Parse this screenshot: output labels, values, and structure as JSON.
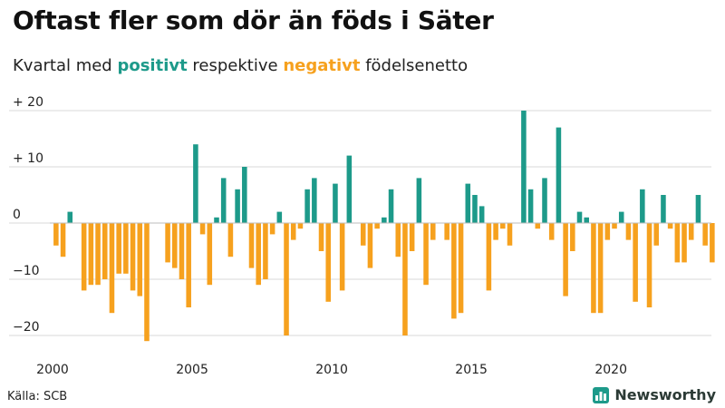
{
  "header": {
    "title": "Oftast fler som dör än föds i Säter",
    "subtitle_pre": "Kvartal med ",
    "subtitle_pos": "positivt",
    "subtitle_mid": " respektive ",
    "subtitle_neg": "negativt",
    "subtitle_post": " födelsenetto"
  },
  "footer": {
    "source": "Källa: SCB",
    "brand": "Newsworthy"
  },
  "colors": {
    "positive": "#1d9a8a",
    "negative": "#f6a11e",
    "grid": "#d9d9d9",
    "axis_text": "#222222"
  },
  "chart_data": {
    "type": "bar",
    "title": "Oftast fler som dör än föds i Säter",
    "subtitle": "Kvartal med positivt respektive negativt födelsenetto",
    "xlabel": "",
    "ylabel": "",
    "start_year": 2000,
    "periods_per_year": 4,
    "xlim": [
      2000,
      2023.5
    ],
    "ylim": [
      -23,
      22
    ],
    "yticks": [
      20,
      10,
      0,
      -10,
      -20
    ],
    "ytick_labels": [
      "+ 20",
      "+ 10",
      "0",
      "−10",
      "−20"
    ],
    "xticks": [
      2000,
      2005,
      2010,
      2015,
      2020
    ],
    "xtick_labels": [
      "2000",
      "2005",
      "2010",
      "2015",
      "2020"
    ],
    "grid": true,
    "values": [
      -4,
      -6,
      2,
      0,
      -12,
      -11,
      -11,
      -10,
      -16,
      -9,
      -9,
      -12,
      -13,
      -21,
      0,
      0,
      -7,
      -8,
      -10,
      -15,
      14,
      -2,
      -11,
      1,
      8,
      -6,
      6,
      10,
      -8,
      -11,
      -10,
      -2,
      2,
      -20,
      -3,
      -1,
      6,
      8,
      -5,
      -14,
      7,
      -12,
      12,
      0,
      -4,
      -8,
      -1,
      1,
      6,
      -6,
      -20,
      -5,
      8,
      -11,
      -3,
      0,
      -3,
      -17,
      -16,
      7,
      5,
      3,
      -12,
      -3,
      -1,
      -4,
      0,
      20,
      6,
      -1,
      8,
      -3,
      17,
      -13,
      -5,
      2,
      1,
      -16,
      -16,
      -3,
      -1,
      2,
      -3,
      -14,
      6,
      -15,
      -4,
      5,
      -1,
      -7,
      -7,
      -3,
      5,
      -4,
      -7
    ]
  }
}
